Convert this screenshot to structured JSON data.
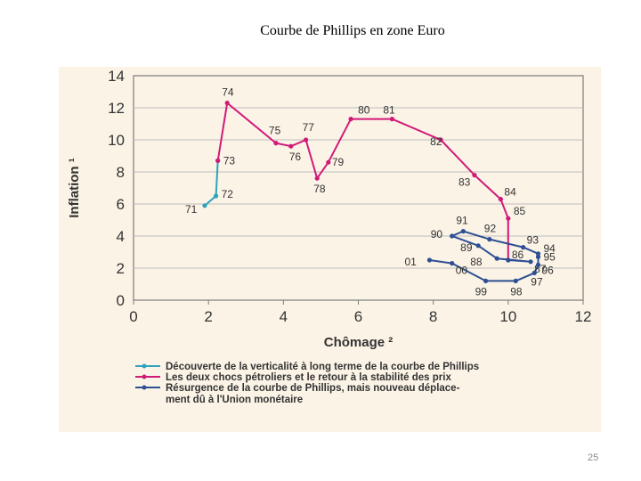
{
  "slide": {
    "title": "Courbe de Phillips en zone Euro",
    "page_number": "25"
  },
  "chart_data": {
    "type": "line",
    "xlabel": "Chômage ²",
    "ylabel": "Inflation ¹",
    "xlim": [
      0,
      12
    ],
    "ylim": [
      0,
      14
    ],
    "x_ticks": [
      "0",
      "2",
      "4",
      "6",
      "8",
      "10",
      "12"
    ],
    "y_ticks": [
      "0",
      "2",
      "4",
      "6",
      "8",
      "10",
      "12",
      "14"
    ],
    "grid": true,
    "legend_position": "bottom",
    "series": [
      {
        "name": "Découverte de la verticalité à long terme de la courbe de Phillips",
        "color": "#2fa3bd",
        "points": [
          {
            "label": "71",
            "x": 1.9,
            "y": 5.9
          },
          {
            "label": "72",
            "x": 2.2,
            "y": 6.5
          },
          {
            "label": "73",
            "x": 2.25,
            "y": 8.7
          }
        ]
      },
      {
        "name": "Les deux chocs pétroliers et le retour à la stabilité des prix",
        "color": "#d11a78",
        "points": [
          {
            "label": "73",
            "x": 2.25,
            "y": 8.7
          },
          {
            "label": "74",
            "x": 2.5,
            "y": 12.3
          },
          {
            "label": "75",
            "x": 3.8,
            "y": 9.8
          },
          {
            "label": "76",
            "x": 4.2,
            "y": 9.6
          },
          {
            "label": "77",
            "x": 4.6,
            "y": 10.0
          },
          {
            "label": "78",
            "x": 4.9,
            "y": 7.6
          },
          {
            "label": "79",
            "x": 5.2,
            "y": 8.6
          },
          {
            "label": "80",
            "x": 5.8,
            "y": 11.3
          },
          {
            "label": "81",
            "x": 6.9,
            "y": 11.3
          },
          {
            "label": "82",
            "x": 8.2,
            "y": 10.0
          },
          {
            "label": "83",
            "x": 9.1,
            "y": 7.8
          },
          {
            "label": "84",
            "x": 9.8,
            "y": 6.3
          },
          {
            "label": "85",
            "x": 10.0,
            "y": 5.1
          },
          {
            "label": "86",
            "x": 10.0,
            "y": 2.5
          }
        ]
      },
      {
        "name": "Résurgence de la courbe de Phillips, mais nouveau déplacement dû à l'Union monétaire",
        "color": "#2e4f93",
        "points": [
          {
            "label": "86",
            "x": 10.0,
            "y": 2.5
          },
          {
            "label": "87",
            "x": 10.6,
            "y": 2.4
          },
          {
            "label": "88",
            "x": 9.7,
            "y": 2.6
          },
          {
            "label": "89",
            "x": 9.2,
            "y": 3.4
          },
          {
            "label": "90",
            "x": 8.5,
            "y": 4.0
          },
          {
            "label": "91",
            "x": 8.8,
            "y": 4.3
          },
          {
            "label": "92",
            "x": 9.5,
            "y": 3.8
          },
          {
            "label": "93",
            "x": 10.4,
            "y": 3.3
          },
          {
            "label": "94",
            "x": 10.8,
            "y": 2.9
          },
          {
            "label": "95",
            "x": 10.8,
            "y": 2.7
          },
          {
            "label": "96",
            "x": 10.8,
            "y": 2.2
          },
          {
            "label": "97",
            "x": 10.7,
            "y": 1.7
          },
          {
            "label": "98",
            "x": 10.2,
            "y": 1.2
          },
          {
            "label": "99",
            "x": 9.4,
            "y": 1.2
          },
          {
            "label": "00",
            "x": 8.5,
            "y": 2.3
          },
          {
            "label": "01",
            "x": 7.9,
            "y": 2.5
          }
        ]
      }
    ]
  }
}
